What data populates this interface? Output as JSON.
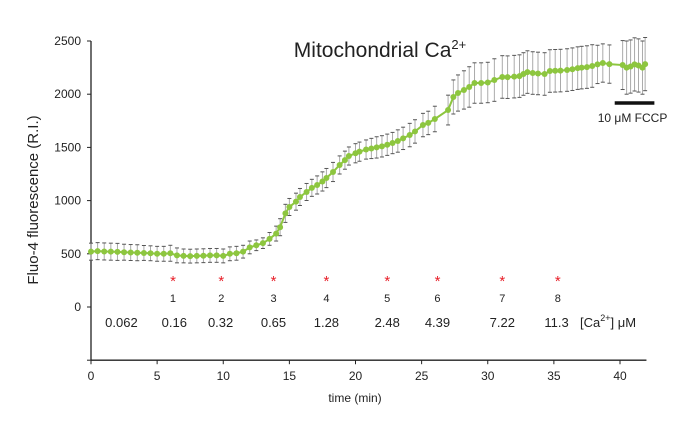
{
  "chart_data": {
    "type": "line",
    "title": "Mitochondrial Ca",
    "title_superscript": "2+",
    "xlabel": "time (min)",
    "ylabel": "Fluo-4 fluorescence (R.I.)",
    "xlim": [
      0,
      42
    ],
    "ylim": [
      -500,
      2500
    ],
    "xticks": [
      0,
      5,
      10,
      15,
      20,
      25,
      30,
      35,
      40
    ],
    "yticks": [
      0,
      500,
      1000,
      1500,
      2000,
      2500
    ],
    "grid": false,
    "line_color": "#8dc63f",
    "errorbar_color": "#555555",
    "series": [
      {
        "x": [
          0,
          0.5,
          1,
          1.5,
          2,
          2.5,
          3,
          3.5,
          4,
          4.5,
          5,
          5.5,
          6,
          6.5,
          7,
          7.5,
          8,
          8.5,
          9,
          9.5,
          10,
          10.5,
          11,
          11.5,
          12,
          12.5,
          13,
          13.5,
          14,
          14.3,
          14.7,
          15,
          15.5,
          15.8,
          16.3,
          16.7,
          17.1,
          17.5,
          17.8,
          18.3,
          18.8,
          19.2,
          19.5,
          20,
          20.3,
          20.8,
          21.2,
          21.6,
          22,
          22.4,
          22.8,
          23.2,
          23.6,
          24.1,
          24.5,
          25.1,
          25.5,
          26,
          27,
          27.4,
          27.75,
          28.2,
          28.6,
          29,
          29.5,
          30,
          30.5,
          31.1,
          31.5,
          32,
          32.4,
          32.7,
          33,
          33.4,
          33.8,
          34.3,
          34.7,
          35.1,
          35.5,
          36,
          36.4,
          36.8,
          37.1,
          37.5,
          37.9,
          38.3,
          38.7,
          39.2,
          40.2,
          40.5,
          40.8,
          41.1,
          41.4,
          41.7,
          41.9
        ],
        "y": [
          520,
          525,
          522,
          520,
          518,
          515,
          512,
          510,
          508,
          505,
          500,
          500,
          505,
          485,
          480,
          478,
          480,
          482,
          485,
          485,
          480,
          500,
          505,
          520,
          560,
          580,
          600,
          640,
          690,
          750,
          880,
          940,
          990,
          1034,
          1081,
          1120,
          1147,
          1180,
          1212,
          1269,
          1335,
          1380,
          1419,
          1445,
          1460,
          1480,
          1490,
          1500,
          1510,
          1525,
          1541,
          1560,
          1585,
          1616,
          1650,
          1710,
          1730,
          1767,
          1851,
          1974,
          2011,
          2040,
          2068,
          2105,
          2105,
          2110,
          2133,
          2162,
          2160,
          2165,
          2170,
          2190,
          2208,
          2199,
          2195,
          2190,
          2218,
          2220,
          2222,
          2227,
          2235,
          2245,
          2250,
          2255,
          2265,
          2280,
          2293,
          2283,
          2274,
          2250,
          2260,
          2280,
          2270,
          2250,
          2283
        ],
        "yerr": [
          80,
          80,
          80,
          80,
          80,
          75,
          75,
          75,
          70,
          70,
          70,
          70,
          75,
          70,
          65,
          65,
          65,
          65,
          65,
          65,
          65,
          65,
          65,
          60,
          60,
          50,
          50,
          60,
          70,
          80,
          85,
          80,
          80,
          80,
          80,
          80,
          85,
          90,
          90,
          90,
          85,
          85,
          85,
          90,
          90,
          90,
          95,
          100,
          100,
          100,
          100,
          105,
          105,
          110,
          110,
          110,
          110,
          120,
          140,
          160,
          170,
          180,
          190,
          190,
          190,
          190,
          200,
          200,
          200,
          200,
          200,
          200,
          200,
          200,
          200,
          200,
          200,
          200,
          200,
          200,
          200,
          200,
          200,
          200,
          200,
          180,
          180,
          180,
          230,
          250,
          250,
          250,
          250,
          250,
          250
        ]
      }
    ],
    "additions": {
      "marker": "*",
      "marker_color": "#e8202a",
      "times": [
        6.2,
        9.85,
        13.8,
        17.8,
        22.4,
        26.2,
        31.1,
        35.3
      ],
      "labels": [
        "1",
        "2",
        "3",
        "4",
        "5",
        "6",
        "7",
        "8"
      ]
    },
    "concentrations": {
      "times": [
        2.3,
        6.3,
        9.8,
        13.8,
        17.8,
        22.4,
        26.2,
        31.1,
        35.2
      ],
      "values": [
        "0.062",
        "0.16",
        "0.32",
        "0.65",
        "1.28",
        "2.48",
        "4.39",
        "7.22",
        "11.3"
      ],
      "unit_label": "[Ca",
      "unit_sup": "2+",
      "unit_suffix": "] μM"
    },
    "fccp": {
      "label": "10 μM FCCP",
      "start": 39.6,
      "end": 42.6
    }
  }
}
